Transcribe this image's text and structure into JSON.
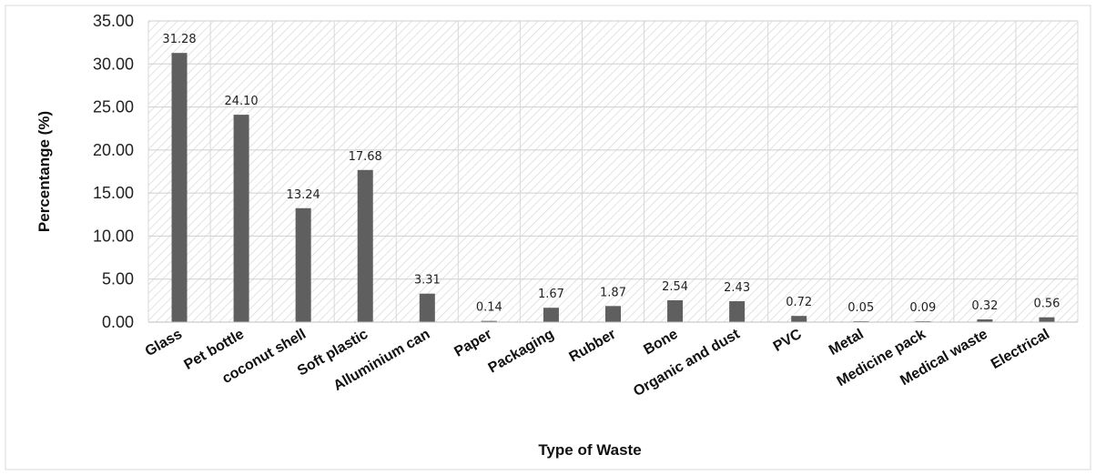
{
  "chart_data": {
    "type": "bar",
    "title": "",
    "xlabel": "Type of Waste",
    "ylabel": "Percentange (%)",
    "ylim": [
      0,
      35
    ],
    "yticks": [
      "0.00",
      "5.00",
      "10.00",
      "15.00",
      "20.00",
      "25.00",
      "30.00",
      "35.00"
    ],
    "grid": true,
    "background": "hatched",
    "bar_color": "#5f5f5f",
    "categories": [
      "Glass",
      "Pet bottle",
      "coconut shell",
      "Soft plastic",
      "Alluminium can",
      "Paper",
      "Packaging",
      "Rubber",
      "Bone",
      "Organic and dust",
      "PVC",
      "Metal",
      "Medicine pack",
      "Medical waste",
      "Electrical"
    ],
    "values": [
      31.28,
      24.1,
      13.24,
      17.68,
      3.31,
      0.14,
      1.67,
      1.87,
      2.54,
      2.43,
      0.72,
      0.05,
      0.09,
      0.32,
      0.56
    ],
    "data_labels": [
      "31.28",
      "24.10",
      "13.24",
      "17.68",
      "3.31",
      "0.14",
      "1.67",
      "1.87",
      "2.54",
      "2.43",
      "0.72",
      "0.05",
      "0.09",
      "0.32",
      "0.56"
    ]
  }
}
